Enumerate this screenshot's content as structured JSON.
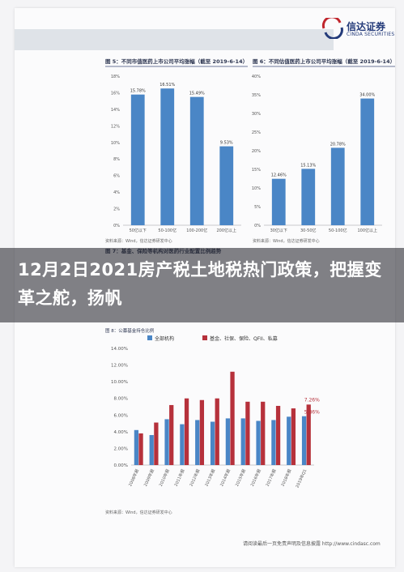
{
  "logo": {
    "cn": "信达证券",
    "en": "CINDA SECURITIES"
  },
  "headline": "12月2日2021房产税土地税热门政策，把握变革之舵，扬帆",
  "footer": {
    "disclaimer": "请阅读最后一页免责声明及信息披露 http://www.cindasc.com"
  },
  "colors": {
    "bar_blue": "#4a86c6",
    "bar_red": "#b6313b",
    "axis": "#555555"
  },
  "chart_data": [
    {
      "type": "bar",
      "title": "图 5：不同市值医药上市公司平均涨幅（截至 2019-6-14）",
      "categories": [
        "50亿以下",
        "50-100亿",
        "100-200亿",
        "200亿以上"
      ],
      "values": [
        15.78,
        16.51,
        15.49,
        9.53
      ],
      "data_labels": [
        "15.78%",
        "16.51%",
        "15.49%",
        "9.53%"
      ],
      "ylim": [
        0,
        18
      ],
      "yticks": [
        "0%",
        "2%",
        "4%",
        "6%",
        "8%",
        "10%",
        "12%",
        "14%",
        "16%",
        "18%"
      ],
      "source": "资料来源：Wind，信达证券研发中心"
    },
    {
      "type": "bar",
      "title": "图 6：不同估值医药上市公司平均涨幅（截至 2019-6-14）",
      "categories": [
        "30亿以下",
        "30-50亿",
        "50-100亿",
        "100亿以上"
      ],
      "values": [
        12.46,
        15.13,
        20.78,
        34.0
      ],
      "data_labels": [
        "12.46%",
        "15.13%",
        "20.78%",
        "34.00%"
      ],
      "ylim": [
        0,
        40
      ],
      "yticks": [
        "0%",
        "5%",
        "10%",
        "15%",
        "20%",
        "25%",
        "30%",
        "35%",
        "40%"
      ],
      "source": "资料来源：Wind，信达证券研发中心"
    },
    {
      "type": "bar",
      "title": "图 7：基金、保险等机构对医药行业配置比例趋势",
      "subtitle": "图 8：公募基金持仓比例",
      "legend": [
        "全部机构",
        "基金、社保、保险、QFII、私募"
      ],
      "categories": [
        "2008年报",
        "2009年报",
        "2010年报",
        "2011年报",
        "2012年报",
        "2013年报",
        "2014年报",
        "2015年报",
        "2016年报",
        "2017年报",
        "2018年报",
        "2019年Q1"
      ],
      "series": [
        {
          "name": "全部机构",
          "values": [
            4.2,
            3.6,
            5.5,
            4.9,
            5.4,
            5.2,
            5.6,
            5.6,
            5.3,
            5.4,
            5.8,
            5.86
          ]
        },
        {
          "name": "基金、社保、保险、QFII、私募",
          "values": [
            3.8,
            5.1,
            7.2,
            8.0,
            7.8,
            8.0,
            11.2,
            7.6,
            7.6,
            7.1,
            6.8,
            7.26
          ]
        }
      ],
      "data_labels": [
        "7.26%",
        "5.86%"
      ],
      "ylim": [
        0,
        14
      ],
      "yticks": [
        "0.00%",
        "2.00%",
        "4.00%",
        "6.00%",
        "8.00%",
        "10.00%",
        "12.00%",
        "14.00%"
      ],
      "source": "资料来源：Wind，信达证券研发中心"
    }
  ]
}
